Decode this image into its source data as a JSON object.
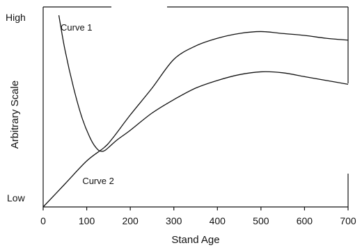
{
  "chart_data": {
    "type": "line",
    "xlabel": "Stand Age",
    "ylabel": "Arbitrary Scale",
    "xlim": [
      0,
      700
    ],
    "x_ticks": [
      "0",
      "100",
      "200",
      "300",
      "400",
      "500",
      "600",
      "700"
    ],
    "ylim": [
      0,
      100
    ],
    "y_tick_labels": {
      "top": "High",
      "bottom": "Low"
    },
    "grid": false,
    "series": [
      {
        "name": "Curve 1",
        "label_at": [
          40,
          92
        ],
        "x": [
          36,
          50,
          70,
          90,
          110,
          125,
          135,
          142,
          150,
          170,
          200,
          250,
          300,
          350,
          400,
          450,
          500,
          550,
          600,
          650,
          700
        ],
        "y": [
          100,
          82,
          62,
          46,
          35,
          30,
          29,
          29.5,
          31,
          35,
          40,
          49,
          56,
          62,
          66,
          69,
          70.5,
          70,
          68,
          66,
          64
        ]
      },
      {
        "name": "Curve 2",
        "label_at": [
          90,
          12
        ],
        "x": [
          0,
          50,
          100,
          140,
          160,
          200,
          250,
          300,
          350,
          400,
          450,
          500,
          550,
          600,
          650,
          700
        ],
        "y": [
          0,
          12,
          24,
          31,
          36,
          48,
          62,
          77,
          84,
          88,
          90.5,
          91.5,
          90.5,
          89.5,
          88,
          87
        ]
      }
    ]
  }
}
